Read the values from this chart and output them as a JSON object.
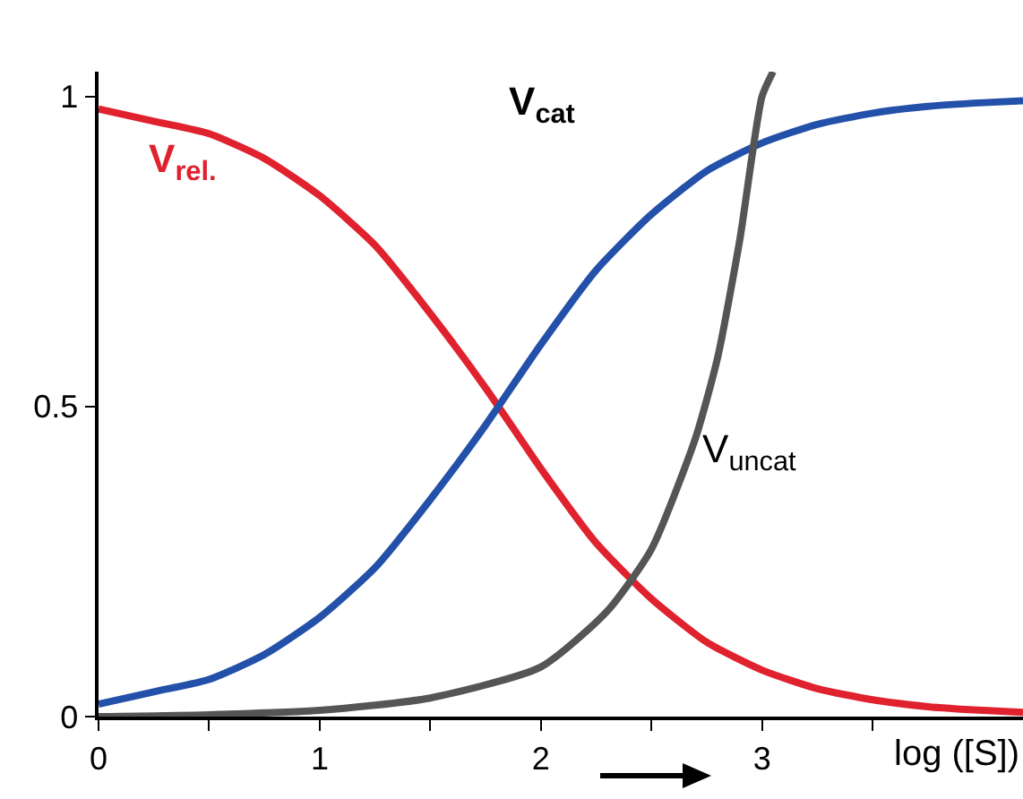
{
  "chart_data": {
    "type": "line",
    "xlabel": "log ([S])",
    "x": [
      0,
      0.25,
      0.5,
      0.75,
      1,
      1.25,
      1.5,
      1.75,
      2,
      2.25,
      2.5,
      2.75,
      3,
      3.25,
      3.5,
      3.75,
      4,
      4.18
    ],
    "series": [
      {
        "name": "V$_{rel.}$",
        "color": "#e0212e",
        "values": [
          0.98,
          0.96,
          0.94,
          0.9,
          0.84,
          0.76,
          0.65,
          0.53,
          0.4,
          0.28,
          0.19,
          0.12,
          0.075,
          0.045,
          0.027,
          0.016,
          0.01,
          0.007
        ]
      },
      {
        "name": "V$_{cat}$",
        "color": "#2350a8",
        "values": [
          0.02,
          0.04,
          0.06,
          0.1,
          0.16,
          0.24,
          0.35,
          0.47,
          0.6,
          0.72,
          0.81,
          0.88,
          0.925,
          0.955,
          0.973,
          0.984,
          0.99,
          0.993
        ]
      },
      {
        "name": "V$_{uncat}$",
        "color": "#555555",
        "x": [
          0,
          0.5,
          1,
          1.5,
          2,
          2.3,
          2.5,
          2.7,
          2.8,
          2.9,
          3,
          3.05
        ],
        "values": [
          0,
          0.003,
          0.01,
          0.03,
          0.08,
          0.17,
          0.27,
          0.45,
          0.58,
          0.77,
          1,
          1.04
        ]
      }
    ],
    "xlim": [
      0,
      4.18
    ],
    "ylim": [
      0,
      1.04
    ],
    "xticks": [
      0,
      {
        "value": 0.5,
        "label": null
      },
      1,
      {
        "value": 1.5,
        "label": null
      },
      2,
      {
        "value": 2.5,
        "label": null
      },
      3,
      {
        "value": 3.5,
        "label": null
      }
    ],
    "yticks": [
      0,
      0.5,
      1
    ],
    "grid": false,
    "legend": false,
    "marker": "none",
    "line_style": "solid"
  }
}
